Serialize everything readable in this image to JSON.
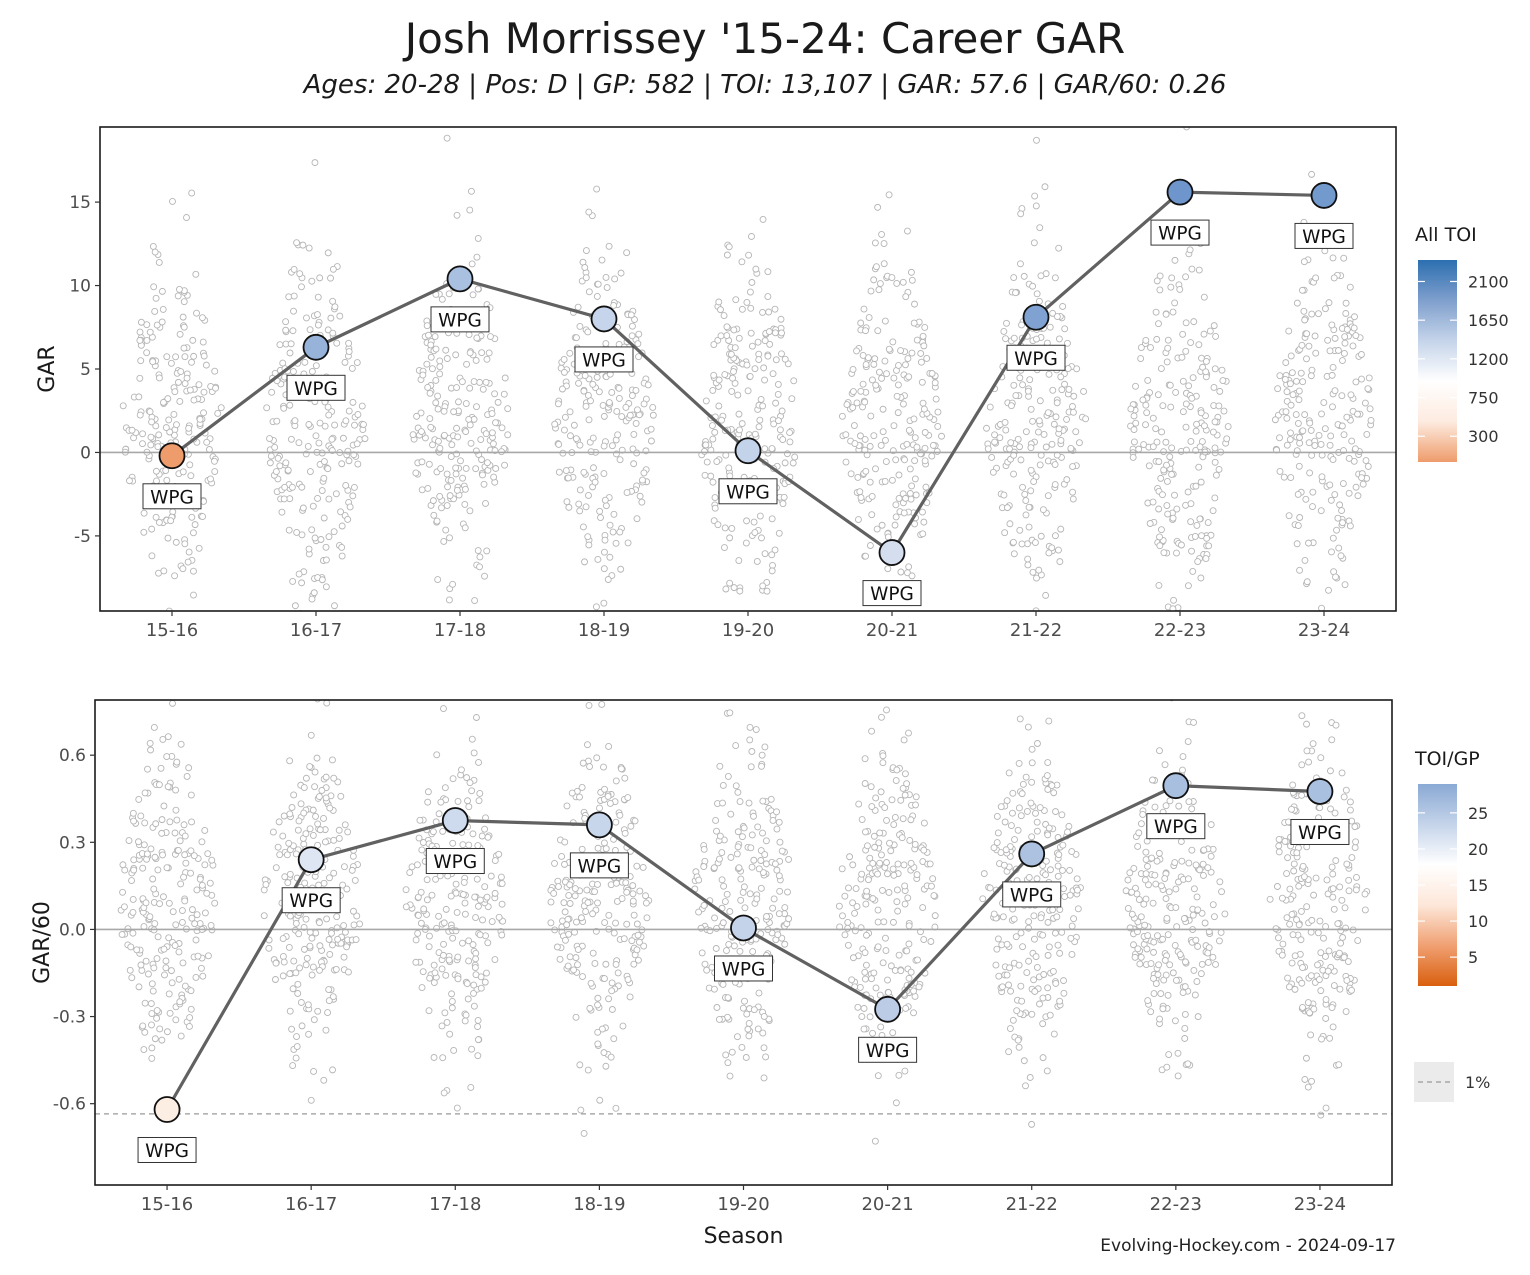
{
  "title": "Josh Morrissey '15-24: Career GAR",
  "subtitle": "Ages: 20-28 | Pos: D | GP: 582 | TOI: 13,107 | GAR: 57.6 | GAR/60: 0.26",
  "credit": "Evolving-Hockey.com - 2024-09-17",
  "team": "WPG",
  "chart_data": [
    {
      "type": "line",
      "id": "gar",
      "ylabel": "GAR",
      "xlabel": "",
      "categories": [
        "15-16",
        "16-17",
        "17-18",
        "18-19",
        "19-20",
        "20-21",
        "21-22",
        "22-23",
        "23-24"
      ],
      "values": [
        -0.2,
        6.3,
        10.4,
        8.0,
        0.1,
        -6.0,
        8.1,
        15.6,
        15.4
      ],
      "point_colors": [
        "#ef9c6c",
        "#97b3da",
        "#a9c0e0",
        "#c7d5ec",
        "#c3d3ea",
        "#d4deef",
        "#7fa2d2",
        "#6f96cc",
        "#739acd"
      ],
      "labels": [
        "WPG",
        "WPG",
        "WPG",
        "WPG",
        "WPG",
        "WPG",
        "WPG",
        "WPG",
        "WPG"
      ],
      "ylim": [
        -9.5,
        19.5
      ],
      "yticks": [
        -5,
        0,
        5,
        10,
        15
      ],
      "ytick_labels": [
        "-5",
        "0",
        "5",
        "10",
        "15"
      ],
      "hline": 0,
      "background_points": "league distribution of defensemen per season (jittered grey dots)",
      "legend": {
        "title": "All TOI",
        "ticks": [
          "2100",
          "1650",
          "1200",
          "750",
          "300"
        ],
        "tick_values": [
          2100,
          1650,
          1200,
          750,
          300
        ],
        "range": [
          0,
          2350
        ],
        "colors": [
          "#ee9b6b",
          "#fdebe0",
          "#ffffff",
          "#c5d4ea",
          "#7f9fcd",
          "#2c6fb0"
        ]
      }
    },
    {
      "type": "line",
      "id": "gar60",
      "ylabel": "GAR/60",
      "xlabel": "Season",
      "categories": [
        "15-16",
        "16-17",
        "17-18",
        "18-19",
        "19-20",
        "20-21",
        "21-22",
        "22-23",
        "23-24"
      ],
      "values": [
        -0.62,
        0.24,
        0.375,
        0.36,
        0.005,
        -0.275,
        0.26,
        0.495,
        0.475
      ],
      "point_colors": [
        "#fdeee4",
        "#dfe6f3",
        "#cedbef",
        "#c8d6ec",
        "#c4d3ea",
        "#bccce6",
        "#adc2e1",
        "#a8bfdf",
        "#a9c0e0"
      ],
      "labels": [
        "WPG",
        "WPG",
        "WPG",
        "WPG",
        "WPG",
        "WPG",
        "WPG",
        "WPG",
        "WPG"
      ],
      "ylim": [
        -0.88,
        0.79
      ],
      "yticks": [
        -0.6,
        -0.3,
        0.0,
        0.3,
        0.6
      ],
      "ytick_labels": [
        "-0.6",
        "-0.3",
        "0.0",
        "0.3",
        "0.6"
      ],
      "hline": 0,
      "dashed_line": -0.635,
      "legend": {
        "title": "TOI/GP",
        "ticks": [
          "25",
          "20",
          "15",
          "10",
          "5"
        ],
        "tick_values": [
          25,
          20,
          15,
          10,
          5
        ],
        "range": [
          1,
          29
        ],
        "colors": [
          "#d95f0e",
          "#f0a072",
          "#fde7d9",
          "#ffffff",
          "#c5d4ea",
          "#8aa9d4"
        ],
        "dashed_label": "1%"
      }
    }
  ]
}
